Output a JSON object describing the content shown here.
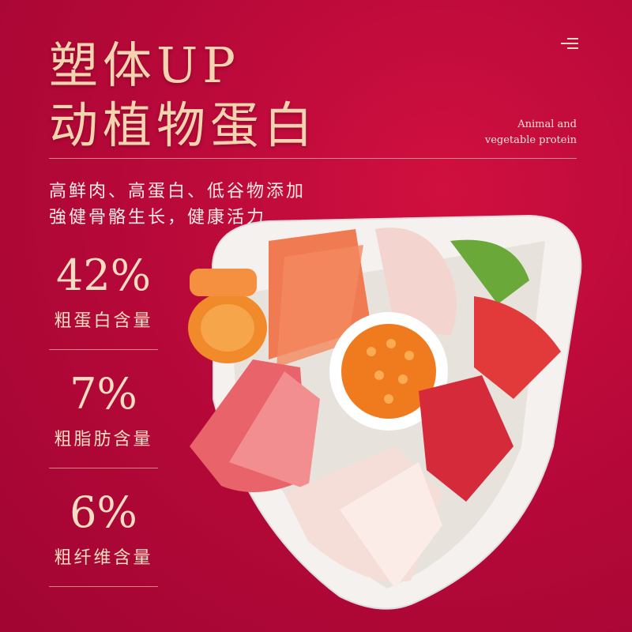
{
  "header": {
    "title_line1": "塑体UP",
    "title_line2": "动植物蛋白",
    "subtitle_en_line1": "Animal and",
    "subtitle_en_line2": "vegetable protein",
    "menu_icon": "menu-icon"
  },
  "description": {
    "line1": "高鲜肉、高蛋白、低谷物添加",
    "line2": "強健骨骼生长，健康活力"
  },
  "stats": [
    {
      "value": "42%",
      "label": "粗蛋白含量"
    },
    {
      "value": "7%",
      "label": "粗脂肪含量"
    },
    {
      "value": "6%",
      "label": "粗纤维含量"
    }
  ],
  "colors": {
    "background": "#b8093a",
    "accent": "#f6dcc0"
  }
}
